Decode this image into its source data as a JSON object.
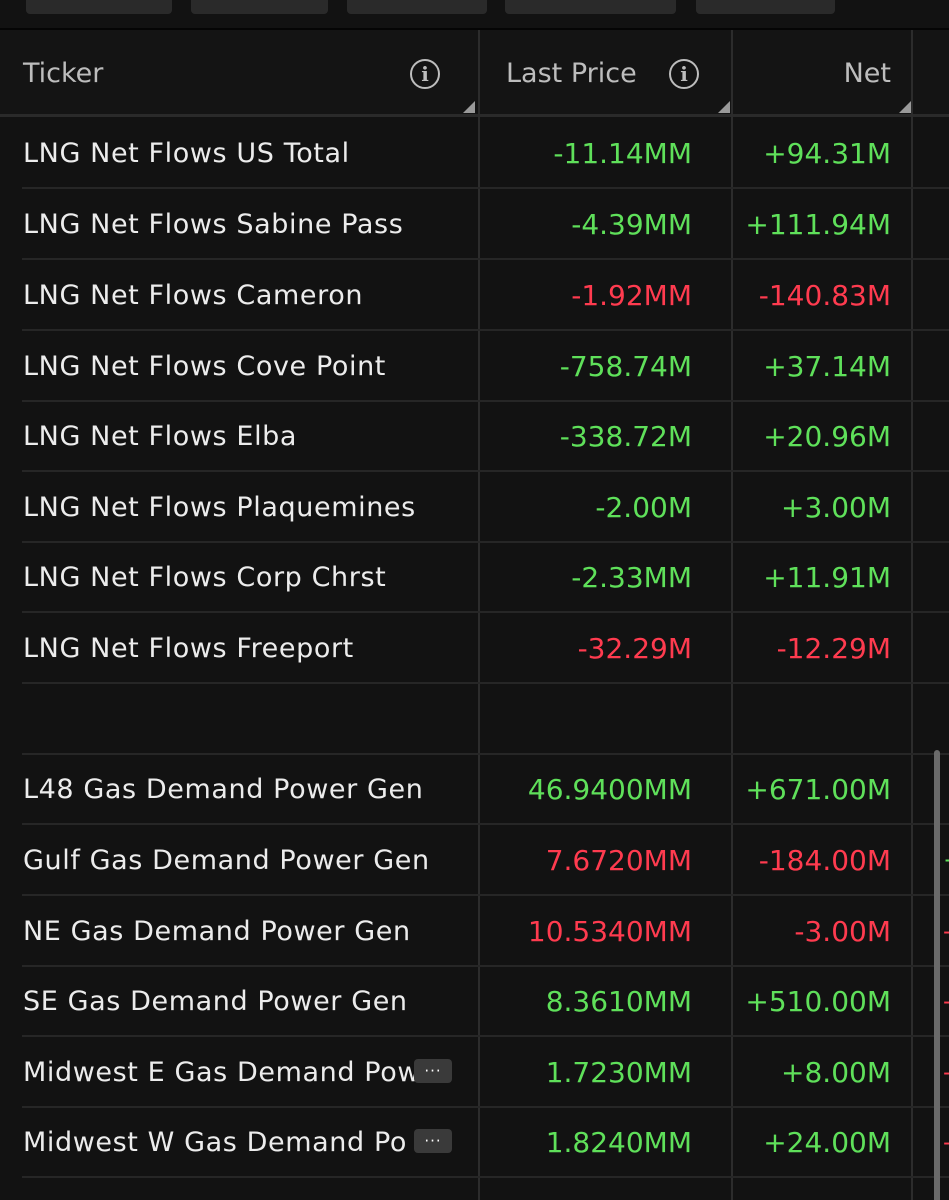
{
  "colors": {
    "background": "#121212",
    "positive": "#5fe05a",
    "negative": "#ff3b4f",
    "text": "#ececec",
    "header_text": "#bdbdbd"
  },
  "header": {
    "ticker_label": "Ticker",
    "last_price_label": "Last Price",
    "net_label": "Net",
    "info_icon_glyph": "i"
  },
  "rows": [
    {
      "name": "LNG Net Flows US Total",
      "last_price": "-11.14MM",
      "net": "+94.31M",
      "price_color": "positive",
      "net_color": "positive"
    },
    {
      "name": "LNG Net Flows Sabine Pass",
      "last_price": "-4.39MM",
      "net": "+111.94M",
      "price_color": "positive",
      "net_color": "positive"
    },
    {
      "name": "LNG Net Flows Cameron",
      "last_price": "-1.92MM",
      "net": "-140.83M",
      "price_color": "negative",
      "net_color": "negative"
    },
    {
      "name": "LNG Net Flows Cove Point",
      "last_price": "-758.74M",
      "net": "+37.14M",
      "price_color": "positive",
      "net_color": "positive"
    },
    {
      "name": "LNG Net Flows Elba",
      "last_price": "-338.72M",
      "net": "+20.96M",
      "price_color": "positive",
      "net_color": "positive"
    },
    {
      "name": "LNG Net Flows Plaquemines",
      "last_price": "-2.00M",
      "net": "+3.00M",
      "price_color": "positive",
      "net_color": "positive"
    },
    {
      "name": "LNG Net Flows Corp Chrst",
      "last_price": "-2.33MM",
      "net": "+11.91M",
      "price_color": "positive",
      "net_color": "positive"
    },
    {
      "name": "LNG Net Flows Freeport",
      "last_price": "-32.29M",
      "net": "-12.29M",
      "price_color": "negative",
      "net_color": "negative"
    },
    {
      "name": "",
      "last_price": "",
      "net": "",
      "price_color": "positive",
      "net_color": "positive"
    },
    {
      "name": "L48 Gas Demand Power Gen",
      "last_price": "46.9400MM",
      "net": "+671.00M",
      "price_color": "positive",
      "net_color": "positive",
      "edge": ""
    },
    {
      "name": "Gulf Gas Demand Power Gen",
      "last_price": "7.6720MM",
      "net": "-184.00M",
      "price_color": "negative",
      "net_color": "negative",
      "edge": "+",
      "edge_color": "positive"
    },
    {
      "name": "NE Gas Demand Power Gen",
      "last_price": "10.5340MM",
      "net": "-3.00M",
      "price_color": "negative",
      "net_color": "negative",
      "edge": "-",
      "edge_color": "negative"
    },
    {
      "name": "SE Gas Demand Power Gen",
      "last_price": "8.3610MM",
      "net": "+510.00M",
      "price_color": "positive",
      "net_color": "positive",
      "edge": "-",
      "edge_color": "negative"
    },
    {
      "name": "Midwest E Gas Demand Pow",
      "last_price": "1.7230MM",
      "net": "+8.00M",
      "price_color": "positive",
      "net_color": "positive",
      "more": "···",
      "edge": "-",
      "edge_color": "negative"
    },
    {
      "name": "Midwest W Gas Demand Po",
      "last_price": "1.8240MM",
      "net": "+24.00M",
      "price_color": "positive",
      "net_color": "positive",
      "more": "···",
      "edge": "-",
      "edge_color": "negative"
    }
  ]
}
